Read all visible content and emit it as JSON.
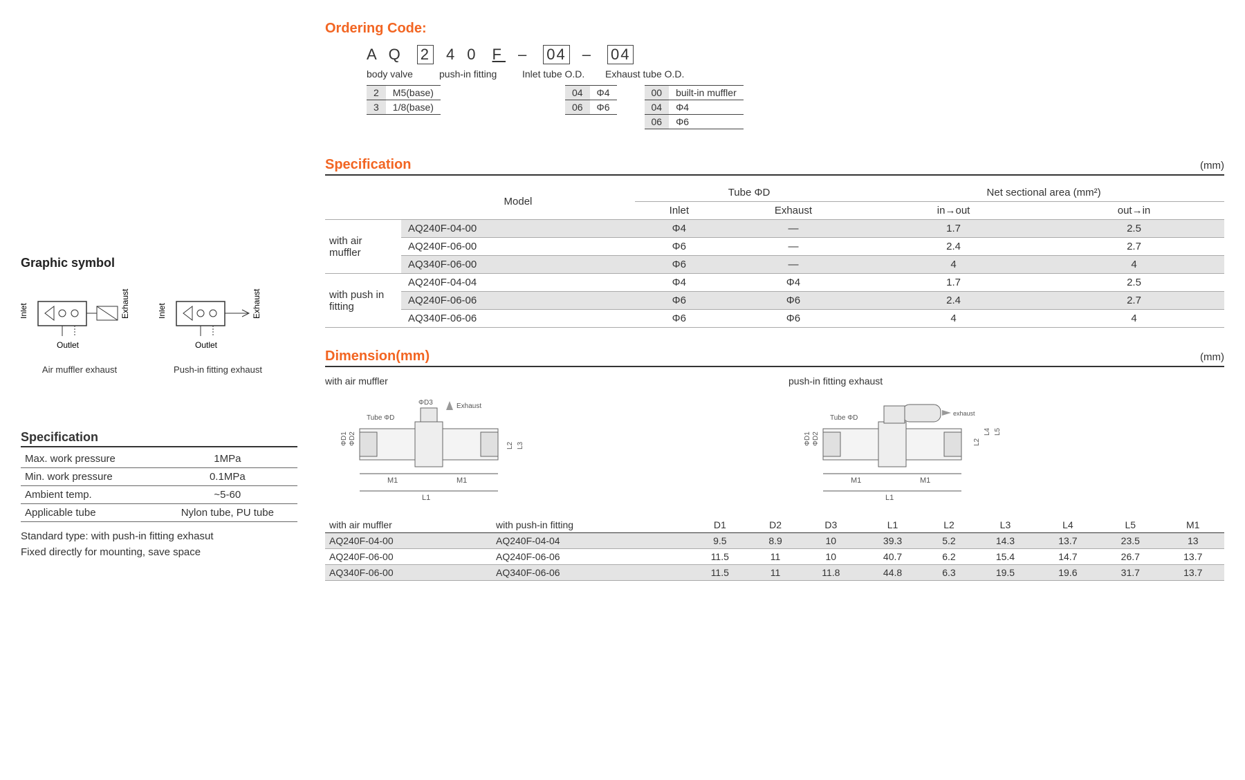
{
  "ordering": {
    "title": "Ordering Code:",
    "code": {
      "p1": "A Q",
      "p2": "2",
      "p3": "4 0",
      "p4": "F",
      "dash": "–",
      "p5": "04",
      "p6": "04"
    },
    "labels": {
      "body": "body valve",
      "push": "push-in fitting",
      "inlet": "Inlet tube O.D.",
      "exhaust": "Exhaust tube O.D."
    },
    "body_table": [
      [
        "2",
        "M5(base)"
      ],
      [
        "3",
        "1/8(base)"
      ]
    ],
    "inlet_table": [
      [
        "04",
        "Φ4"
      ],
      [
        "06",
        "Φ6"
      ]
    ],
    "exhaust_table": [
      [
        "00",
        "built-in muffler"
      ],
      [
        "04",
        "Φ4"
      ],
      [
        "06",
        "Φ6"
      ]
    ]
  },
  "graphic": {
    "title": "Graphic symbol",
    "inlet": "Inlet",
    "outlet": "Outlet",
    "exhaust": "Exhaust",
    "sym1": "Air muffler exhaust",
    "sym2": "Push-in fitting exhaust"
  },
  "left_spec": {
    "title": "Specification",
    "rows": [
      [
        "Max. work pressure",
        "1MPa"
      ],
      [
        "Min. work pressure",
        "0.1MPa"
      ],
      [
        "Ambient temp.",
        "~5-60"
      ],
      [
        "Applicable tube",
        "Nylon tube, PU tube"
      ]
    ],
    "note1": "Standard type: with push-in fitting exhasut",
    "note2": "Fixed directly for mounting, save space"
  },
  "spec": {
    "title": "Specification",
    "unit": "(mm)",
    "head": {
      "model": "Model",
      "tube": "Tube ΦD",
      "inlet": "Inlet",
      "exhaust": "Exhaust",
      "area": "Net sectional area (mm²)",
      "inout": "in→out",
      "outin": "out→in"
    },
    "group1": "with air muffler",
    "group2": "with push in fitting",
    "rows1": [
      {
        "model": "AQ240F-04-00",
        "inlet": "Φ4",
        "exhaust": "—",
        "inout": "1.7",
        "outin": "2.5",
        "stripe": true
      },
      {
        "model": "AQ240F-06-00",
        "inlet": "Φ6",
        "exhaust": "—",
        "inout": "2.4",
        "outin": "2.7",
        "stripe": false
      },
      {
        "model": "AQ340F-06-00",
        "inlet": "Φ6",
        "exhaust": "—",
        "inout": "4",
        "outin": "4",
        "stripe": true
      }
    ],
    "rows2": [
      {
        "model": "AQ240F-04-04",
        "inlet": "Φ4",
        "exhaust": "Φ4",
        "inout": "1.7",
        "outin": "2.5",
        "stripe": false
      },
      {
        "model": "AQ240F-06-06",
        "inlet": "Φ6",
        "exhaust": "Φ6",
        "inout": "2.4",
        "outin": "2.7",
        "stripe": true
      },
      {
        "model": "AQ340F-06-06",
        "inlet": "Φ6",
        "exhaust": "Φ6",
        "inout": "4",
        "outin": "4",
        "stripe": false
      }
    ]
  },
  "dim": {
    "title": "Dimension(mm)",
    "unit": "(mm)",
    "draw1": "with air muffler",
    "draw2": "push-in fitting exhaust",
    "labels": {
      "tube": "Tube ΦD",
      "d3": "ΦD3",
      "exh": "Exhaust",
      "exh2": "exhaust",
      "d1": "ΦD1",
      "d2": "ΦD2",
      "m1": "M1",
      "l1": "L1",
      "l2": "L2",
      "l3": "L3",
      "l4": "L4",
      "l5": "L5"
    },
    "head": [
      "with air muffler",
      "with push-in fitting",
      "D1",
      "D2",
      "D3",
      "L1",
      "L2",
      "L3",
      "L4",
      "L5",
      "M1"
    ],
    "rows": [
      {
        "a": "AQ240F-04-00",
        "b": "AQ240F-04-04",
        "v": [
          "9.5",
          "8.9",
          "10",
          "39.3",
          "5.2",
          "14.3",
          "13.7",
          "23.5",
          "13"
        ],
        "stripe": true
      },
      {
        "a": "AQ240F-06-00",
        "b": "AQ240F-06-06",
        "v": [
          "11.5",
          "11",
          "10",
          "40.7",
          "6.2",
          "15.4",
          "14.7",
          "26.7",
          "13.7"
        ],
        "stripe": false
      },
      {
        "a": "AQ340F-06-00",
        "b": "AQ340F-06-06",
        "v": [
          "11.5",
          "11",
          "11.8",
          "44.8",
          "6.3",
          "19.5",
          "19.6",
          "31.7",
          "13.7"
        ],
        "stripe": true
      }
    ]
  }
}
